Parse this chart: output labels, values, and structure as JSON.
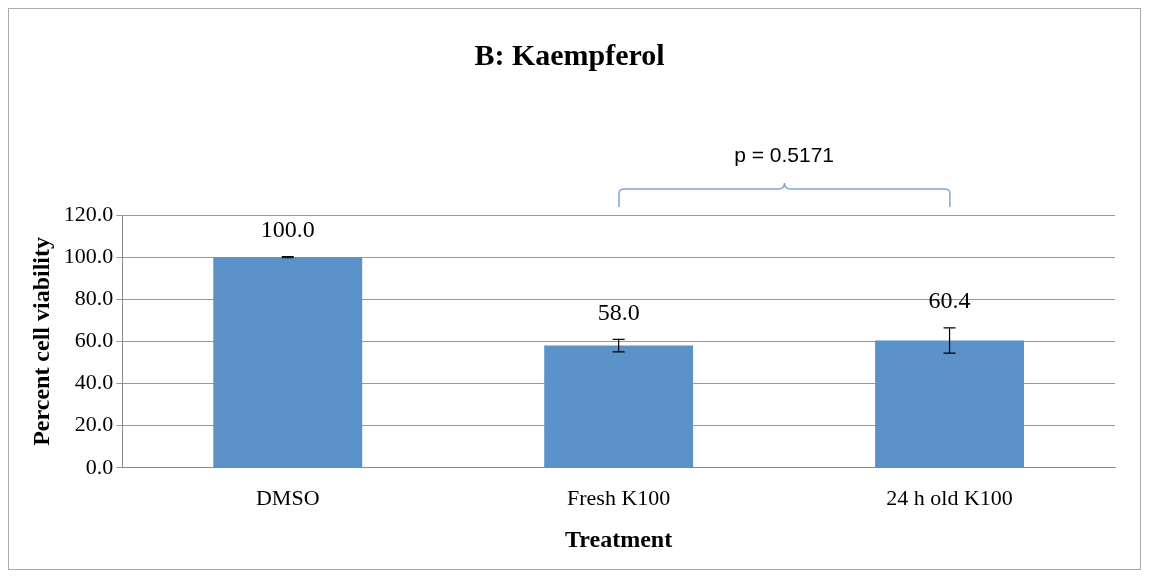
{
  "chart_data": {
    "type": "bar",
    "title": "B: Kaempferol",
    "xlabel": "Treatment",
    "ylabel": "Percent cell viability",
    "categories": [
      "DMSO",
      "Fresh K100",
      "24 h old K100"
    ],
    "values": [
      100.0,
      58.0,
      60.4
    ],
    "errors": [
      0.3,
      3,
      6
    ],
    "value_labels": [
      "100.0",
      "58.0",
      "60.4"
    ],
    "color": "#5b92c9",
    "ylim": [
      0,
      120
    ],
    "yticks": [
      {
        "value": 0,
        "label": "0.0"
      },
      {
        "value": 20,
        "label": "20.0"
      },
      {
        "value": 40,
        "label": "40.0"
      },
      {
        "value": 60,
        "label": "60.0"
      },
      {
        "value": 80,
        "label": "80.0"
      },
      {
        "value": 100,
        "label": "100.0"
      },
      {
        "value": 120,
        "label": "120.0"
      }
    ],
    "grid": "y",
    "legend": false,
    "annotations": [
      "p = 0.5171"
    ]
  }
}
